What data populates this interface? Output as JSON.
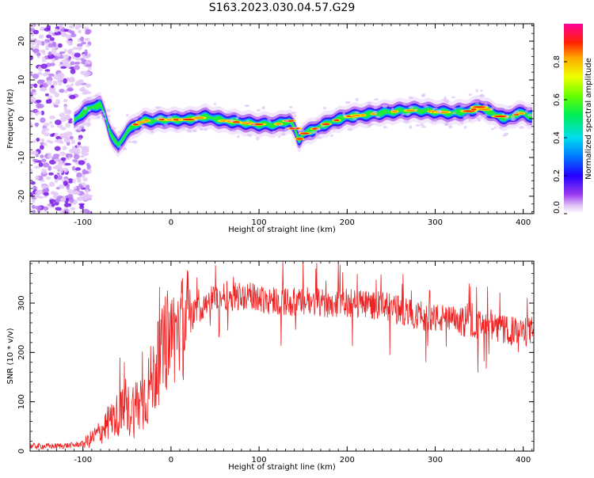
{
  "title": "S163.2023.030.04.57.G29",
  "colors": {
    "snr_line": "#ee2222",
    "axis": "#000000",
    "background": "#ffffff"
  },
  "chart_data": [
    {
      "type": "heatmap",
      "title": "S163.2023.030.04.57.G29",
      "xlabel": "Height of straight line (km)",
      "ylabel": "Frequency (Hz)",
      "xlim": [
        -160,
        412
      ],
      "ylim": [
        -24.5,
        24.5
      ],
      "x_ticks": [
        -100,
        0,
        100,
        200,
        300,
        400
      ],
      "y_ticks": [
        -20,
        -10,
        0,
        10,
        20
      ],
      "colorbar": {
        "label": "Normalized spectral amplitude",
        "range": [
          0.0,
          1.0
        ],
        "ticks": [
          0.0,
          0.2,
          0.4,
          0.6,
          0.8
        ],
        "colormap": "rainbow"
      },
      "ridge": {
        "description_units": "frequency of peak amplitude (Hz) vs height (km)",
        "x": [
          -110,
          -100,
          -90,
          -80,
          -75,
          -70,
          -65,
          -60,
          -55,
          -50,
          -40,
          -30,
          -20,
          -10,
          0,
          20,
          40,
          60,
          80,
          100,
          120,
          135,
          140,
          145,
          150,
          160,
          180,
          200,
          220,
          240,
          260,
          280,
          300,
          320,
          340,
          350,
          360,
          370,
          380,
          390,
          400,
          410
        ],
        "y": [
          -0.5,
          1.5,
          3.0,
          3.5,
          1.0,
          -3.0,
          -5.5,
          -7.0,
          -5.0,
          -3.5,
          -1.5,
          -0.5,
          -0.5,
          -0.2,
          -0.3,
          -0.2,
          0.5,
          -0.5,
          -1.0,
          -1.5,
          -1.5,
          -0.5,
          -2.5,
          -5.5,
          -4.0,
          -3.0,
          -1.0,
          0.5,
          1.0,
          1.5,
          2.0,
          2.2,
          1.8,
          1.5,
          2.0,
          3.0,
          2.0,
          1.0,
          0.0,
          1.0,
          1.5,
          0.5
        ]
      },
      "noise_region_km": [
        -160,
        -100
      ]
    },
    {
      "type": "line",
      "xlabel": "Height of straight line (km)",
      "ylabel": "SNR (10 * v/v)",
      "xlim": [
        -160,
        412
      ],
      "ylim": [
        0,
        385
      ],
      "x_ticks": [
        -100,
        0,
        100,
        200,
        300,
        400
      ],
      "y_ticks": [
        0,
        100,
        200,
        300
      ],
      "trend": {
        "x": [
          -160,
          -130,
          -110,
          -100,
          -90,
          -80,
          -70,
          -60,
          -50,
          -40,
          -30,
          -20,
          -10,
          0,
          10,
          20,
          30,
          40,
          60,
          80,
          100,
          120,
          150,
          180,
          200,
          220,
          250,
          280,
          300,
          320,
          350,
          380,
          400,
          412
        ],
        "y": [
          10,
          10,
          12,
          15,
          25,
          40,
          60,
          75,
          80,
          90,
          110,
          150,
          200,
          230,
          250,
          265,
          285,
          305,
          315,
          315,
          310,
          305,
          300,
          300,
          300,
          300,
          290,
          275,
          270,
          265,
          255,
          245,
          240,
          245
        ]
      }
    }
  ]
}
